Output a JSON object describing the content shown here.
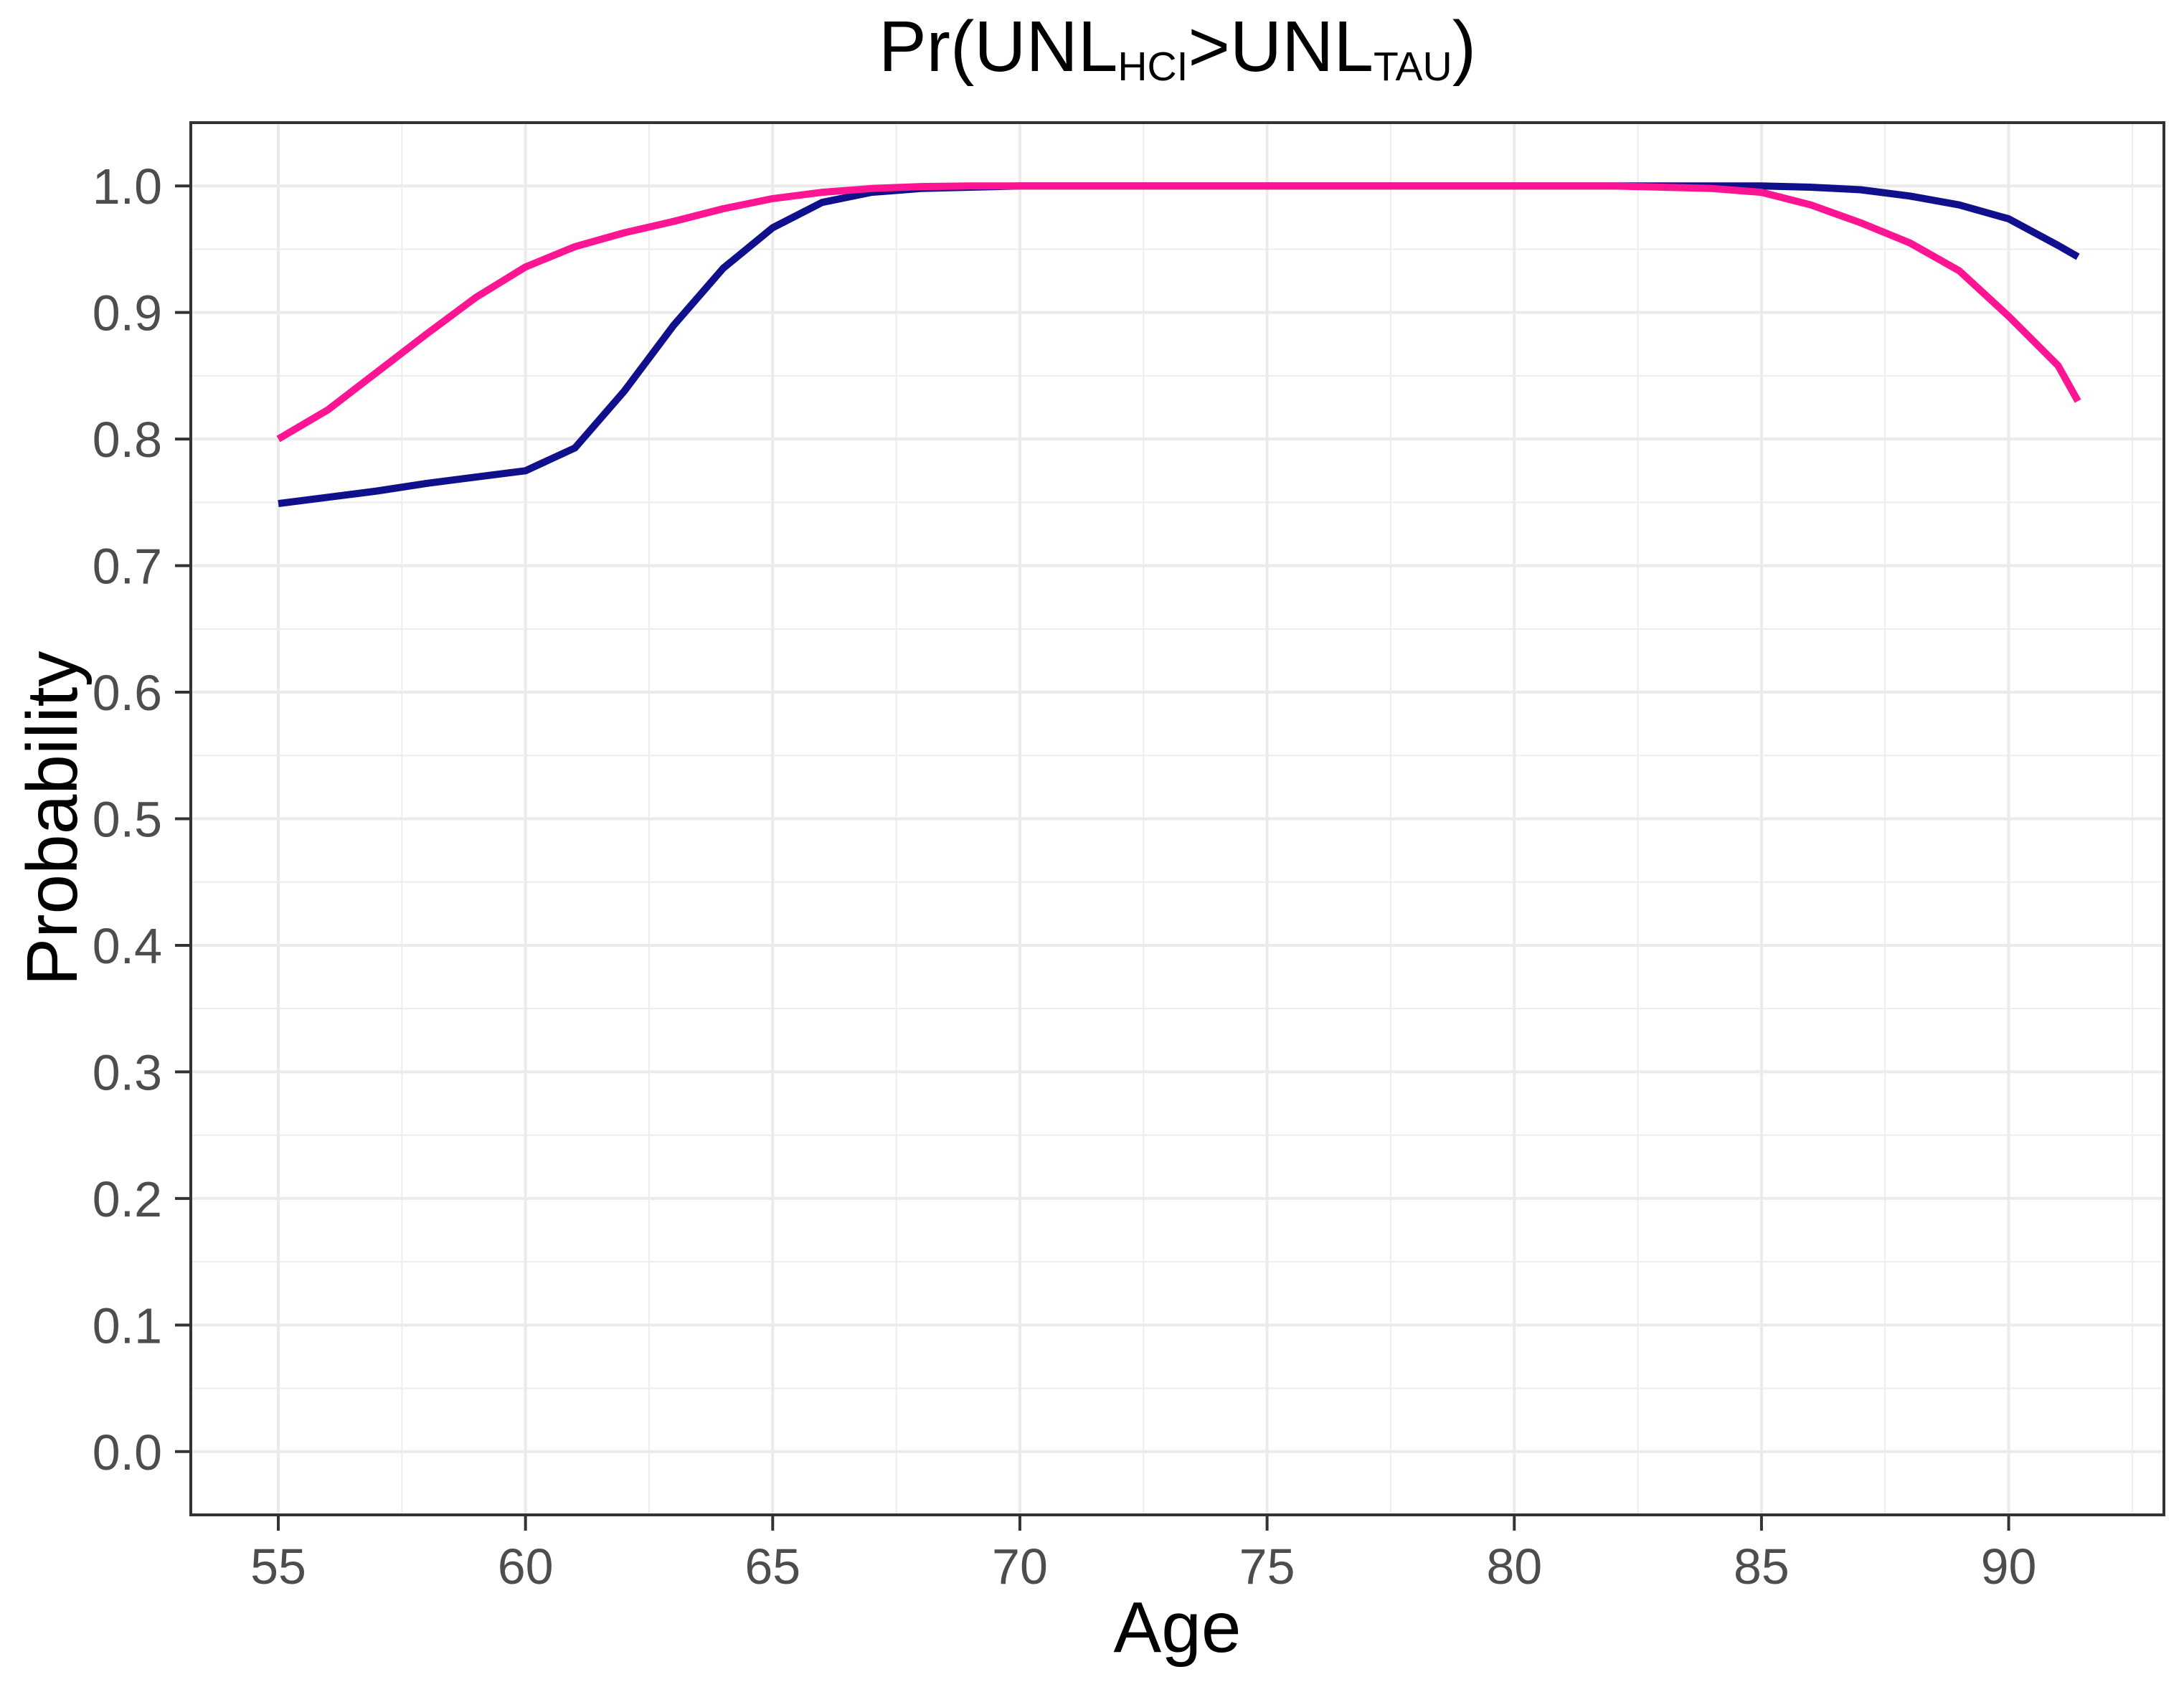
{
  "title": {
    "prefix": "Pr(UNL",
    "sub1": "HCI",
    "mid": ">UNL",
    "sub2": "TAU",
    "suffix": ")"
  },
  "axis_titles": {
    "x": "Age",
    "y": "Probability"
  },
  "chart_data": {
    "type": "line",
    "title": "Pr(UNL_HCI > UNL_TAU)",
    "xlabel": "Age",
    "ylabel": "Probability",
    "xlim": [
      53.23,
      93.14
    ],
    "ylim": [
      -0.05,
      1.05
    ],
    "x_major_ticks": [
      55,
      60,
      65,
      70,
      75,
      80,
      85,
      90
    ],
    "x_minor_ticks": [
      57.5,
      62.5,
      67.5,
      72.5,
      77.5,
      82.5,
      87.5,
      92.5
    ],
    "y_major_ticks": [
      0.0,
      0.1,
      0.2,
      0.3,
      0.4,
      0.5,
      0.6,
      0.7,
      0.8,
      0.9,
      1.0
    ],
    "y_minor_ticks": [
      0.05,
      0.15,
      0.25,
      0.35,
      0.45,
      0.55,
      0.65,
      0.75,
      0.85,
      0.95
    ],
    "x_tick_labels": [
      "55",
      "60",
      "65",
      "70",
      "75",
      "80",
      "85",
      "90"
    ],
    "y_tick_labels": [
      "0.0",
      "0.1",
      "0.2",
      "0.3",
      "0.4",
      "0.5",
      "0.6",
      "0.7",
      "0.8",
      "0.9",
      "1.0"
    ],
    "grid": true,
    "legend_position": "none",
    "colors": {
      "pink_line": "#FF1493",
      "navy_line": "#10108C",
      "grid_major": "#EBEBEB",
      "grid_minor": "#EDEDED",
      "panel_border": "#333333",
      "tick_text": "#4D4D4D"
    },
    "series": [
      {
        "name": "navy-line",
        "color": "#10108C",
        "points": [
          [
            55,
            0.749
          ],
          [
            56,
            0.754
          ],
          [
            57,
            0.759
          ],
          [
            58,
            0.765
          ],
          [
            59,
            0.77
          ],
          [
            60,
            0.775
          ],
          [
            61,
            0.793
          ],
          [
            62,
            0.838
          ],
          [
            63,
            0.89
          ],
          [
            64,
            0.935
          ],
          [
            65,
            0.967
          ],
          [
            66,
            0.987
          ],
          [
            67,
            0.995
          ],
          [
            68,
            0.998
          ],
          [
            69,
            0.999
          ],
          [
            70,
            1.0
          ],
          [
            72,
            1.0
          ],
          [
            74,
            1.0
          ],
          [
            76,
            1.0
          ],
          [
            78,
            1.0
          ],
          [
            80,
            1.0
          ],
          [
            82,
            1.0
          ],
          [
            84,
            1.0
          ],
          [
            85,
            1.0
          ],
          [
            86,
            0.999
          ],
          [
            87,
            0.997
          ],
          [
            88,
            0.992
          ],
          [
            89,
            0.985
          ],
          [
            90,
            0.974
          ],
          [
            91,
            0.953
          ],
          [
            91.4,
            0.944
          ]
        ]
      },
      {
        "name": "pink-line",
        "color": "#FF1493",
        "points": [
          [
            55,
            0.8
          ],
          [
            56,
            0.823
          ],
          [
            57,
            0.853
          ],
          [
            58,
            0.883
          ],
          [
            59,
            0.912
          ],
          [
            60,
            0.936
          ],
          [
            61,
            0.952
          ],
          [
            62,
            0.963
          ],
          [
            63,
            0.972
          ],
          [
            64,
            0.982
          ],
          [
            65,
            0.99
          ],
          [
            66,
            0.995
          ],
          [
            67,
            0.998
          ],
          [
            68,
            0.9995
          ],
          [
            69,
            1.0
          ],
          [
            70,
            1.0
          ],
          [
            72,
            1.0
          ],
          [
            74,
            1.0
          ],
          [
            76,
            1.0
          ],
          [
            78,
            1.0
          ],
          [
            80,
            1.0
          ],
          [
            82,
            1.0
          ],
          [
            83,
            0.999
          ],
          [
            84,
            0.998
          ],
          [
            85,
            0.995
          ],
          [
            86,
            0.985
          ],
          [
            87,
            0.971
          ],
          [
            88,
            0.955
          ],
          [
            89,
            0.933
          ],
          [
            90,
            0.897
          ],
          [
            91,
            0.858
          ],
          [
            91.4,
            0.83
          ]
        ]
      }
    ]
  }
}
